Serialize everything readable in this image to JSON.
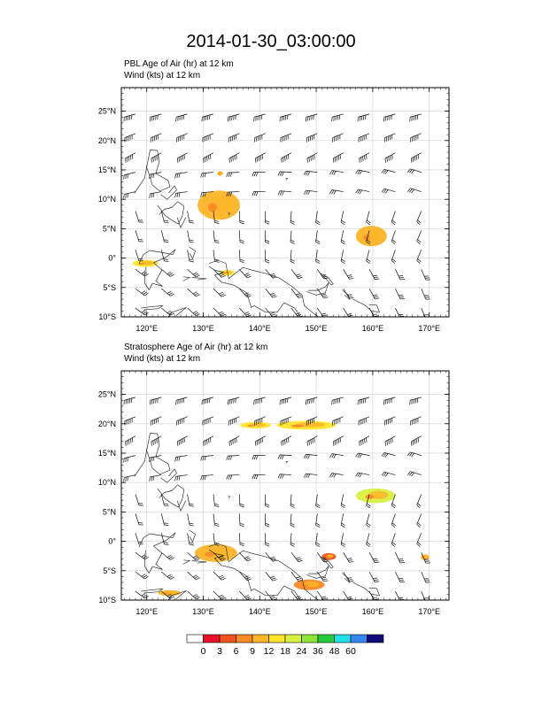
{
  "title": "2014-01-30_03:00:00",
  "panels": [
    {
      "title_line1": "PBL Age of Air   (hr)     at   12 km",
      "title_line2": "Wind   (kts)     at   12 km"
    },
    {
      "title_line1": "Stratosphere Age of Air   (hr)     at   12 km",
      "title_line2": "Wind   (kts)     at   12 km"
    }
  ],
  "colorbar": {
    "labels": [
      "0",
      "3",
      "6",
      "9",
      "12",
      "18",
      "24",
      "36",
      "48",
      "60"
    ],
    "colors": [
      "#ffffff",
      "#e8102a",
      "#f4501c",
      "#f88a24",
      "#fbb528",
      "#fde52d",
      "#d8f040",
      "#8fe43a",
      "#22cc3a",
      "#22e0e8",
      "#3388f0",
      "#0f0a78"
    ]
  },
  "chart_data": [
    {
      "type": "heatmap",
      "title": "PBL Age of Air   (hr)     at   12 km",
      "subtitle": "Wind   (kts)     at   12 km",
      "variable": "PBL Age of Air (hr)",
      "xlim": [
        115.5,
        173.5
      ],
      "ylim": [
        -10,
        29
      ],
      "x_ticks": [
        120,
        130,
        140,
        150,
        160,
        170
      ],
      "x_tick_labels": [
        "120°E",
        "130°E",
        "140°E",
        "150°E",
        "160°E",
        "170°E"
      ],
      "y_ticks": [
        -10,
        -5,
        0,
        5,
        10,
        15,
        20,
        25
      ],
      "y_tick_labels": [
        "10°S",
        "5°S",
        "0°",
        "5°N",
        "10°N",
        "15°N",
        "20°N",
        "25°N"
      ],
      "grid": true,
      "levels": [
        0,
        3,
        6,
        9,
        12,
        18,
        24,
        36,
        48,
        60
      ],
      "regions": [
        {
          "lon": [
            129.0,
            136.5
          ],
          "lat": [
            6.5,
            11.5
          ],
          "value": "9-12"
        },
        {
          "lon": [
            132.5,
            133.5
          ],
          "lat": [
            14.0,
            14.8
          ],
          "value": "9-12"
        },
        {
          "lon": [
            157.0,
            162.5
          ],
          "lat": [
            2.0,
            5.5
          ],
          "value": "9-12"
        },
        {
          "lon": [
            117.5,
            122.0
          ],
          "lat": [
            -1.5,
            -0.3
          ],
          "value": "12-18"
        },
        {
          "lon": [
            133.0,
            135.5
          ],
          "lat": [
            -3.0,
            -2.0
          ],
          "value": "12-18"
        }
      ],
      "wind_barbs": "uniform grid, kts"
    },
    {
      "type": "heatmap",
      "title": "Stratosphere Age of Air   (hr)     at   12 km",
      "subtitle": "Wind   (kts)     at   12 km",
      "variable": "Stratosphere Age of Air (hr)",
      "xlim": [
        115.5,
        173.5
      ],
      "ylim": [
        -10,
        29
      ],
      "x_ticks": [
        120,
        130,
        140,
        150,
        160,
        170
      ],
      "x_tick_labels": [
        "120°E",
        "130°E",
        "140°E",
        "150°E",
        "160°E",
        "170°E"
      ],
      "y_ticks": [
        -10,
        -5,
        0,
        5,
        10,
        15,
        20,
        25
      ],
      "y_tick_labels": [
        "10°S",
        "5°S",
        "0°",
        "5°N",
        "10°N",
        "15°N",
        "20°N",
        "25°N"
      ],
      "grid": true,
      "levels": [
        0,
        3,
        6,
        9,
        12,
        18,
        24,
        36,
        48,
        60
      ],
      "regions": [
        {
          "lon": [
            136.5,
            142.0
          ],
          "lat": [
            19.2,
            20.3
          ],
          "value": "12-18"
        },
        {
          "lon": [
            143.0,
            153.5
          ],
          "lat": [
            19.0,
            20.5
          ],
          "value": "12-18"
        },
        {
          "lon": [
            157.0,
            164.0
          ],
          "lat": [
            6.5,
            9.0
          ],
          "value": "18-24"
        },
        {
          "lon": [
            128.5,
            136.0
          ],
          "lat": [
            -3.5,
            -0.5
          ],
          "value": "6-12"
        },
        {
          "lon": [
            146.0,
            151.5
          ],
          "lat": [
            -8.3,
            -6.5
          ],
          "value": "3-9"
        },
        {
          "lon": [
            151.0,
            153.5
          ],
          "lat": [
            -3.2,
            -2.0
          ],
          "value": "0-6"
        },
        {
          "lon": [
            122.0,
            126.0
          ],
          "lat": [
            -9.3,
            -8.3
          ],
          "value": "9-12"
        },
        {
          "lon": [
            168.5,
            170.0
          ],
          "lat": [
            -3.2,
            -2.2
          ],
          "value": "9-12"
        }
      ],
      "wind_barbs": "uniform grid, kts"
    }
  ]
}
